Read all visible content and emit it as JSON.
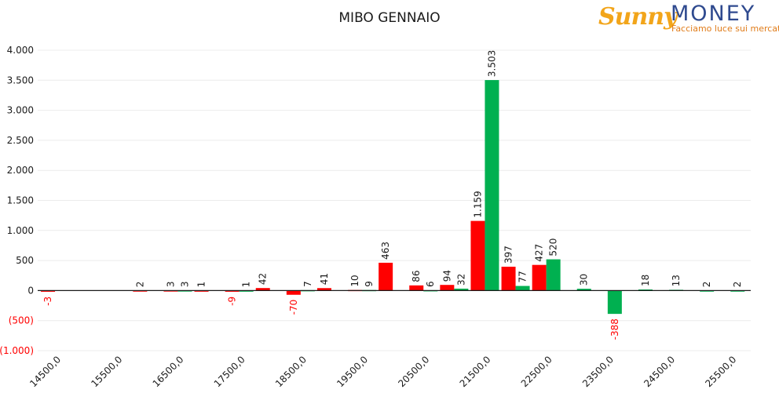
{
  "logo": {
    "word": "Sunny",
    "brand": "MONEY",
    "tagline": "Facciamo luce sui mercati"
  },
  "chart_data": {
    "type": "bar",
    "title": "MIBO GENNAIO",
    "xlabel": "",
    "ylabel": "",
    "ylim": [
      -1000,
      4000
    ],
    "y_ticks": [
      4000,
      3500,
      3000,
      2500,
      2000,
      1500,
      1000,
      500,
      0,
      -500,
      -1000
    ],
    "y_tick_labels": [
      "4.000",
      "3.500",
      "3.000",
      "2.500",
      "2.000",
      "1.500",
      "1.000",
      "500",
      "0",
      "(500)",
      "(1.000)"
    ],
    "x_tick_labels": [
      "14500,0",
      "15500,0",
      "16500,0",
      "17500,0",
      "18500,0",
      "19500,0",
      "20500,0",
      "21500,0",
      "22500,0",
      "23500,0",
      "24500,0",
      "25500,0"
    ],
    "categories": [
      14500,
      15000,
      15500,
      16000,
      16500,
      17000,
      17500,
      18000,
      18500,
      19000,
      19500,
      20000,
      20500,
      21000,
      21500,
      22000,
      22500,
      23000,
      23500,
      24000,
      24500,
      25000,
      25500,
      26000
    ],
    "colors": {
      "Put": "#ff0000",
      "Call": "#00b050",
      "negative_label": "#ff0000"
    },
    "series": [
      {
        "name": "Put",
        "values": [
          -3,
          null,
          null,
          2,
          3,
          1,
          -9,
          42,
          -70,
          41,
          10,
          463,
          86,
          94,
          1159,
          397,
          427,
          null,
          null,
          null,
          null,
          null,
          null,
          null
        ],
        "labels": [
          "-3",
          null,
          null,
          "2",
          "3",
          "1",
          "-9",
          "42",
          "-70",
          "41",
          "10",
          "463",
          "86",
          "94",
          "1.159",
          "397",
          "427",
          null,
          null,
          null,
          null,
          null,
          null,
          null
        ]
      },
      {
        "name": "Call",
        "values": [
          null,
          null,
          null,
          null,
          3,
          null,
          1,
          null,
          7,
          null,
          9,
          null,
          6,
          32,
          3503,
          77,
          520,
          30,
          -388,
          18,
          13,
          2,
          2,
          null
        ],
        "labels": [
          null,
          null,
          null,
          null,
          "3",
          null,
          "1",
          null,
          "7",
          null,
          "9",
          null,
          "6",
          "32",
          "3.503",
          "77",
          "520",
          "30",
          "-388",
          "18",
          "13",
          "2",
          "2",
          null
        ]
      }
    ],
    "grid": true,
    "legend": "none"
  }
}
